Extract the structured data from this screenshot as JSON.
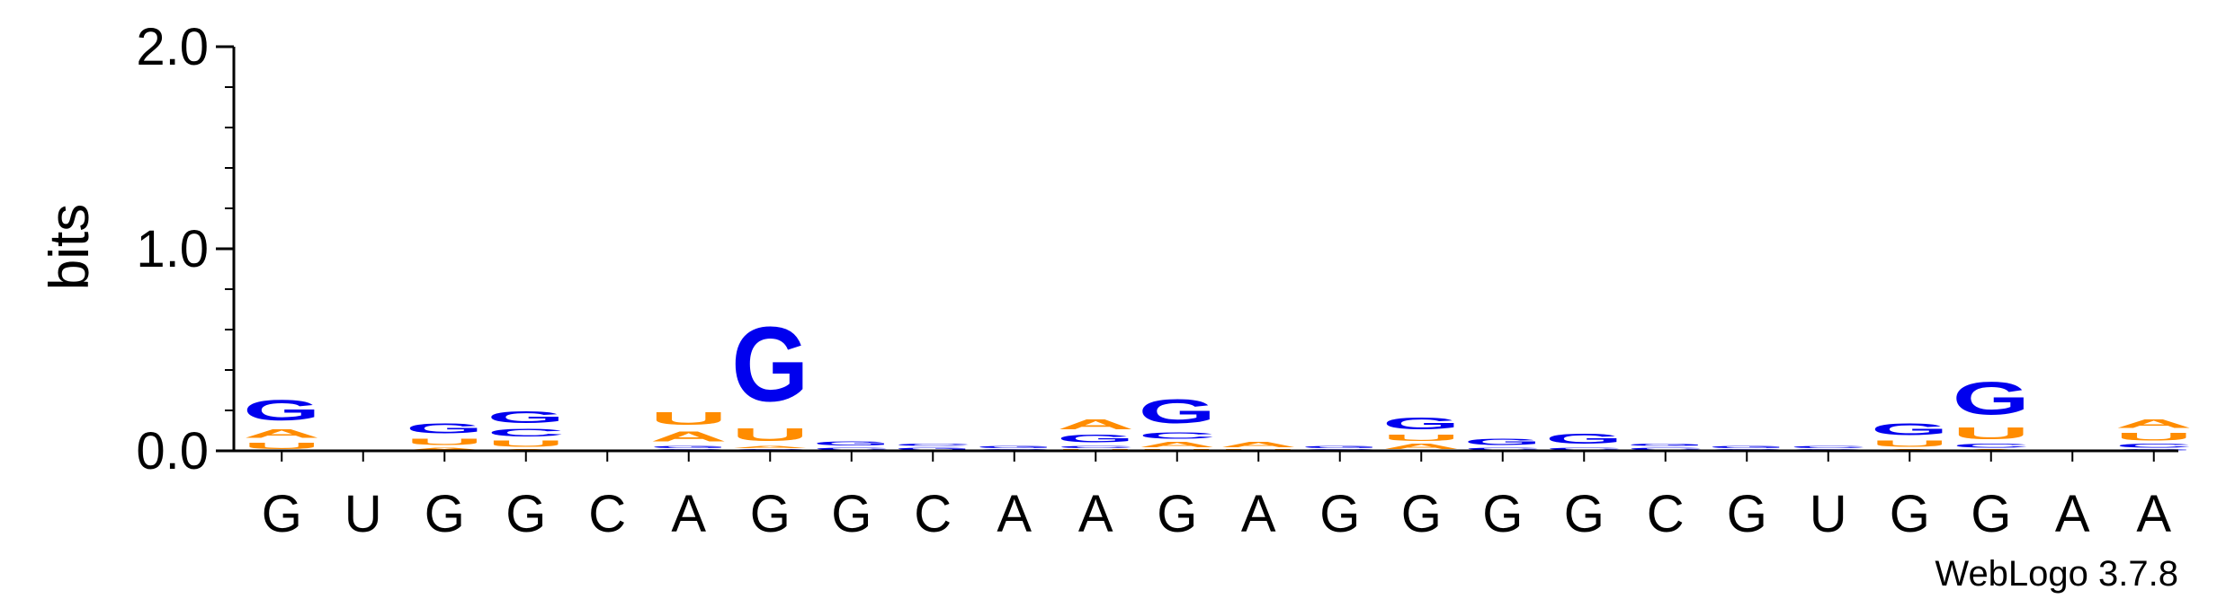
{
  "chart_data": {
    "type": "sequence-logo",
    "ylabel": "bits",
    "ylim": [
      0,
      2.0
    ],
    "yticks": [
      {
        "value": 2.0,
        "label": "2.0"
      },
      {
        "value": 1.0,
        "label": "1.0"
      },
      {
        "value": 0.0,
        "label": "0.0"
      }
    ],
    "positions": [
      {
        "label": "G",
        "stack": [
          {
            "letter": "G",
            "bits": 0.16
          },
          {
            "letter": "A",
            "bits": 0.07
          },
          {
            "letter": "U",
            "bits": 0.05
          }
        ]
      },
      {
        "label": "U",
        "stack": []
      },
      {
        "label": "G",
        "stack": [
          {
            "letter": "G",
            "bits": 0.08
          },
          {
            "letter": "U",
            "bits": 0.05
          },
          {
            "letter": "A",
            "bits": 0.02
          }
        ]
      },
      {
        "label": "G",
        "stack": [
          {
            "letter": "G",
            "bits": 0.09
          },
          {
            "letter": "C",
            "bits": 0.06
          },
          {
            "letter": "U",
            "bits": 0.05
          },
          {
            "letter": "A",
            "bits": 0.01
          }
        ]
      },
      {
        "label": "C",
        "stack": []
      },
      {
        "label": "A",
        "stack": [
          {
            "letter": "A",
            "bits": 0.08
          },
          {
            "letter": "U",
            "bits": 0.1
          },
          {
            "letter": "G",
            "bits": 0.02
          },
          {
            "letter": "C",
            "bits": 0.01
          }
        ]
      },
      {
        "label": "G",
        "stack": [
          {
            "letter": "G",
            "bits": 0.59
          },
          {
            "letter": "U",
            "bits": 0.1
          },
          {
            "letter": "A",
            "bits": 0.02
          },
          {
            "letter": "C",
            "bits": 0.01
          }
        ]
      },
      {
        "label": "G",
        "stack": [
          {
            "letter": "G",
            "bits": 0.03
          },
          {
            "letter": "C",
            "bits": 0.02
          }
        ]
      },
      {
        "label": "C",
        "stack": [
          {
            "letter": "G",
            "bits": 0.02
          },
          {
            "letter": "C",
            "bits": 0.02
          }
        ]
      },
      {
        "label": "A",
        "stack": [
          {
            "letter": "G",
            "bits": 0.02
          },
          {
            "letter": "C",
            "bits": 0.01
          }
        ]
      },
      {
        "label": "A",
        "stack": [
          {
            "letter": "A",
            "bits": 0.08
          },
          {
            "letter": "G",
            "bits": 0.06
          },
          {
            "letter": "C",
            "bits": 0.02
          },
          {
            "letter": "U",
            "bits": 0.01
          }
        ]
      },
      {
        "label": "G",
        "stack": [
          {
            "letter": "G",
            "bits": 0.19
          },
          {
            "letter": "C",
            "bits": 0.05
          },
          {
            "letter": "A",
            "bits": 0.04
          },
          {
            "letter": "U",
            "bits": 0.01
          }
        ]
      },
      {
        "label": "A",
        "stack": [
          {
            "letter": "A",
            "bits": 0.04
          },
          {
            "letter": "U",
            "bits": 0.01
          }
        ]
      },
      {
        "label": "G",
        "stack": [
          {
            "letter": "G",
            "bits": 0.02
          },
          {
            "letter": "C",
            "bits": 0.01
          }
        ]
      },
      {
        "label": "G",
        "stack": [
          {
            "letter": "G",
            "bits": 0.09
          },
          {
            "letter": "A",
            "bits": 0.04
          },
          {
            "letter": "U",
            "bits": 0.05
          }
        ]
      },
      {
        "label": "G",
        "stack": [
          {
            "letter": "G",
            "bits": 0.05
          },
          {
            "letter": "C",
            "bits": 0.02
          }
        ]
      },
      {
        "label": "G",
        "stack": [
          {
            "letter": "G",
            "bits": 0.08
          },
          {
            "letter": "C",
            "bits": 0.02
          }
        ]
      },
      {
        "label": "C",
        "stack": [
          {
            "letter": "C",
            "bits": 0.02
          },
          {
            "letter": "G",
            "bits": 0.02
          }
        ]
      },
      {
        "label": "G",
        "stack": [
          {
            "letter": "G",
            "bits": 0.02
          },
          {
            "letter": "C",
            "bits": 0.01
          }
        ]
      },
      {
        "label": "U",
        "stack": [
          {
            "letter": "C",
            "bits": 0.02
          },
          {
            "letter": "G",
            "bits": 0.01
          }
        ]
      },
      {
        "label": "G",
        "stack": [
          {
            "letter": "G",
            "bits": 0.09
          },
          {
            "letter": "U",
            "bits": 0.05
          },
          {
            "letter": "A",
            "bits": 0.01
          }
        ]
      },
      {
        "label": "G",
        "stack": [
          {
            "letter": "G",
            "bits": 0.26
          },
          {
            "letter": "U",
            "bits": 0.09
          },
          {
            "letter": "C",
            "bits": 0.03
          },
          {
            "letter": "A",
            "bits": 0.01
          }
        ]
      },
      {
        "label": "A",
        "stack": []
      },
      {
        "label": "A",
        "stack": [
          {
            "letter": "A",
            "bits": 0.07
          },
          {
            "letter": "U",
            "bits": 0.06
          },
          {
            "letter": "C",
            "bits": 0.03
          },
          {
            "letter": "G",
            "bits": 0.01
          }
        ]
      }
    ],
    "colors": {
      "A": "#ff8c00",
      "U": "#ff8c00",
      "G": "#0000ee",
      "C": "#0000ee"
    },
    "credit": "WebLogo 3.7.8"
  }
}
